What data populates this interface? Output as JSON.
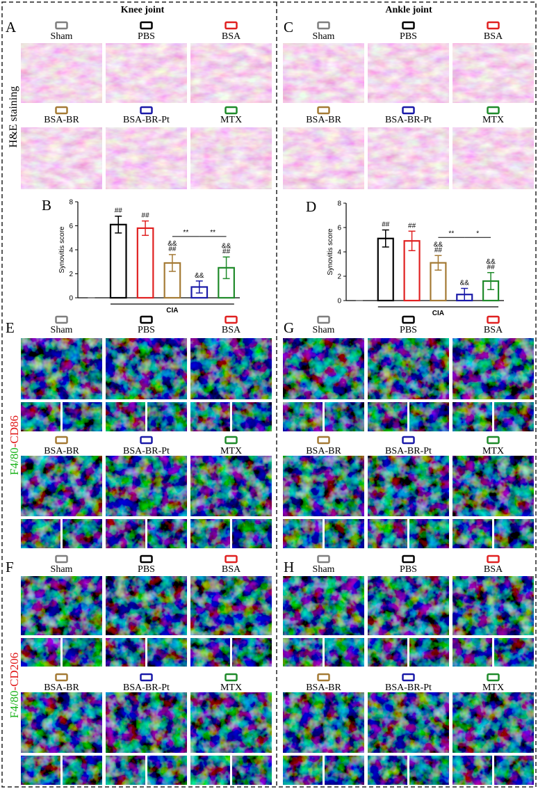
{
  "columns": [
    "Knee joint",
    "Ankle joint"
  ],
  "panel_letters": [
    "A",
    "B",
    "C",
    "D",
    "E",
    "F",
    "G",
    "H"
  ],
  "groups": [
    {
      "name": "Sham",
      "color": "#7f7f7f"
    },
    {
      "name": "PBS",
      "color": "#000000"
    },
    {
      "name": "BSA",
      "color": "#e02020"
    },
    {
      "name": "BSA-BR",
      "color": "#a47a35"
    },
    {
      "name": "BSA-BR-Pt",
      "color": "#1a1aa8"
    },
    {
      "name": "MTX",
      "color": "#1f8a2a"
    }
  ],
  "row_labels": {
    "he": "H&E staining",
    "cd86": [
      "F4/80",
      "-CD86"
    ],
    "cd206": [
      "F4/80",
      "-CD206"
    ]
  },
  "chart_data": [
    {
      "type": "bar",
      "y_label": "Synovitis score",
      "categories": [
        null,
        null,
        null,
        null,
        null,
        null
      ],
      "values": [
        0,
        6.1,
        5.8,
        2.9,
        0.9,
        2.5
      ],
      "errors": [
        0,
        0.7,
        0.6,
        0.7,
        0.5,
        0.9
      ],
      "colors": [
        "#7f7f7f",
        "#000000",
        "#e02020",
        "#a47a35",
        "#1a1aa8",
        "#1f8a2a"
      ],
      "ylim": [
        0,
        8
      ],
      "yticks": [
        0,
        2,
        4,
        6,
        8
      ],
      "bar_annotations": [
        [],
        [
          "##"
        ],
        [
          "##"
        ],
        [
          "##",
          "&&"
        ],
        [
          "&&"
        ],
        [
          "##",
          "&&"
        ]
      ],
      "significance": [
        "**",
        "**"
      ],
      "group_label": "CIA"
    },
    {
      "type": "bar",
      "y_label": "Synovitis score",
      "categories": [
        null,
        null,
        null,
        null,
        null,
        null
      ],
      "values": [
        0,
        5.1,
        4.9,
        3.1,
        0.5,
        1.6
      ],
      "errors": [
        0,
        0.7,
        0.8,
        0.6,
        0.5,
        0.7
      ],
      "colors": [
        "#7f7f7f",
        "#000000",
        "#e02020",
        "#a47a35",
        "#1a1aa8",
        "#1f8a2a"
      ],
      "ylim": [
        0,
        8
      ],
      "yticks": [
        0,
        2,
        4,
        6,
        8
      ],
      "bar_annotations": [
        [],
        [
          "##"
        ],
        [
          "##"
        ],
        [
          "##",
          "&&"
        ],
        [
          "&&"
        ],
        [
          "##",
          "&&"
        ]
      ],
      "significance": [
        "**",
        "*"
      ],
      "group_label": "CIA"
    }
  ]
}
